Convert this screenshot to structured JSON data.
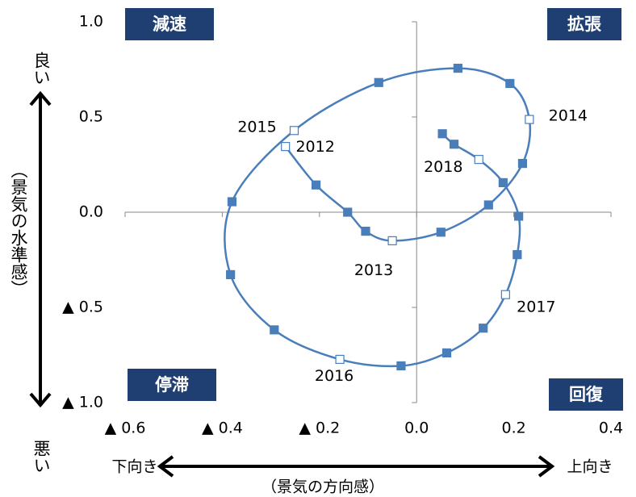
{
  "chart_data": {
    "type": "line",
    "x": [
      -0.27,
      -0.207,
      -0.142,
      -0.105,
      -0.05,
      0.05,
      0.148,
      0.218,
      0.232,
      0.192,
      0.085,
      -0.078,
      -0.252,
      -0.38,
      -0.383,
      -0.293,
      -0.158,
      -0.032,
      0.062,
      0.137,
      0.183,
      0.207,
      0.21,
      0.178,
      0.128,
      0.077,
      0.053
    ],
    "series": [
      {
        "color": "#4a7ebb",
        "values": [
          0.345,
          0.143,
          0.0,
          -0.1,
          -0.15,
          -0.105,
          0.038,
          0.256,
          0.487,
          0.676,
          0.756,
          0.681,
          0.429,
          0.055,
          -0.328,
          -0.618,
          -0.773,
          -0.807,
          -0.739,
          -0.609,
          -0.433,
          -0.223,
          -0.021,
          0.155,
          0.277,
          0.357,
          0.412
        ],
        "point_labels": [
          "2012",
          null,
          null,
          null,
          "2013",
          null,
          null,
          null,
          "2014",
          null,
          null,
          null,
          "2015",
          null,
          null,
          null,
          "2016",
          null,
          null,
          null,
          "2017",
          null,
          null,
          null,
          "2018",
          null,
          null
        ]
      }
    ],
    "xlim": [
      -0.6,
      0.4
    ],
    "ylim": [
      -1.0,
      1.0
    ],
    "xticks": [
      {
        "value": -0.6,
        "label": "▲ 0.6"
      },
      {
        "value": -0.4,
        "label": "▲ 0.4"
      },
      {
        "value": -0.2,
        "label": "▲ 0.2"
      },
      {
        "value": 0,
        "label": "0.0"
      },
      0.2,
      0.4
    ],
    "yticks": [
      {
        "value": 1.0,
        "label": "1.0"
      },
      0.5,
      {
        "value": 0,
        "label": "0.0"
      },
      {
        "value": -0.5,
        "label": "▲ 0.5"
      },
      {
        "value": -1.0,
        "label": "▲ 1.0"
      }
    ],
    "quadrant_labels": [
      "減速",
      "拡張",
      "停滞",
      "回復"
    ],
    "quadrant_color": "#1f3f73",
    "y_label": "（景気の水準感）",
    "y_high": "良い",
    "y_low": "悪い",
    "x_label": "（景気の方向感）",
    "x_low": "下向き",
    "x_high": "上向き"
  }
}
